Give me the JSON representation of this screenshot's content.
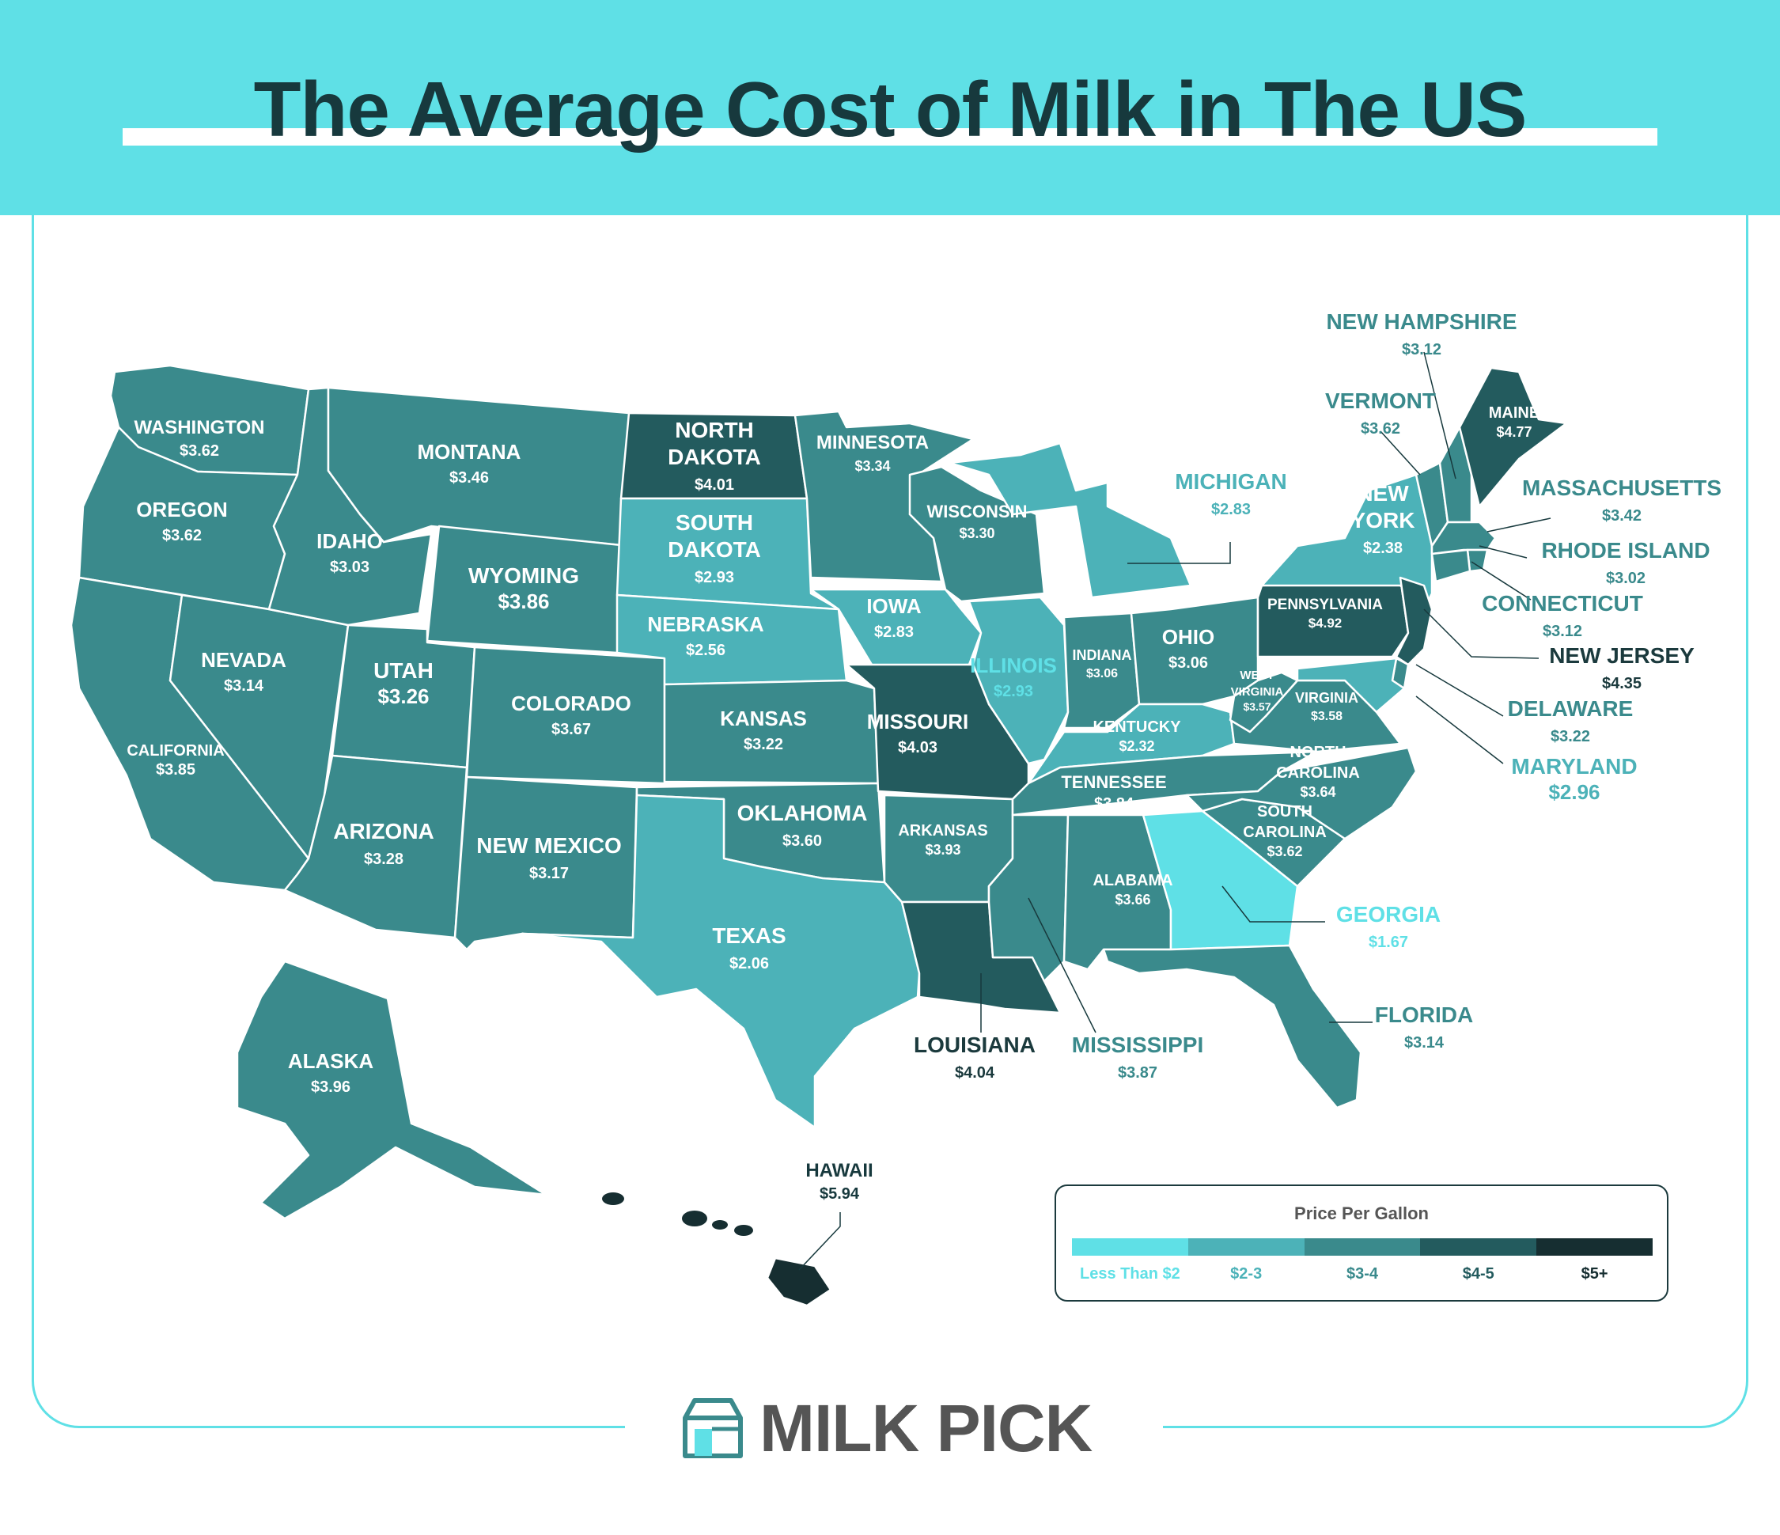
{
  "title": "The Average Cost of Milk in The US",
  "colors": {
    "header": "#5fe0e6",
    "title_text": "#17393d",
    "tier_lt2": "#5fe0e6",
    "tier_2_3": "#4cb2b8",
    "tier_3_4": "#3a8a8c",
    "tier_4_5": "#235b5e",
    "tier_5plus": "#162e31"
  },
  "legend": {
    "title": "Price Per Gallon",
    "items": [
      {
        "label": "Less Than $2",
        "color": "#5fe0e6",
        "text_color": "#5fe0e6"
      },
      {
        "label": "$2-3",
        "color": "#4cb2b8",
        "text_color": "#4cb2b8"
      },
      {
        "label": "$3-4",
        "color": "#3a8a8c",
        "text_color": "#3a8a8c"
      },
      {
        "label": "$4-5",
        "color": "#235b5e",
        "text_color": "#235b5e"
      },
      {
        "label": "$5+",
        "color": "#162e31",
        "text_color": "#162e31"
      }
    ]
  },
  "brand": {
    "name": "MILK PICK",
    "icon": "milk-carton-icon"
  },
  "states": [
    {
      "name": "WASHINGTON",
      "price": "$3.62",
      "tier": "tier_3_4"
    },
    {
      "name": "OREGON",
      "price": "$3.62",
      "tier": "tier_3_4"
    },
    {
      "name": "CALIFORNIA",
      "price": "$3.85",
      "tier": "tier_3_4"
    },
    {
      "name": "NEVADA",
      "price": "$3.14",
      "tier": "tier_3_4"
    },
    {
      "name": "IDAHO",
      "price": "$3.03",
      "tier": "tier_3_4"
    },
    {
      "name": "MONTANA",
      "price": "$3.46",
      "tier": "tier_3_4"
    },
    {
      "name": "WYOMING",
      "price": "$3.86",
      "tier": "tier_3_4"
    },
    {
      "name": "UTAH",
      "price": "$3.26",
      "tier": "tier_3_4"
    },
    {
      "name": "ARIZONA",
      "price": "$3.28",
      "tier": "tier_3_4"
    },
    {
      "name": "COLORADO",
      "price": "$3.67",
      "tier": "tier_3_4"
    },
    {
      "name": "NEW MEXICO",
      "price": "$3.17",
      "tier": "tier_3_4"
    },
    {
      "name": "NORTH DAKOTA",
      "price": "$4.01",
      "tier": "tier_4_5"
    },
    {
      "name": "SOUTH DAKOTA",
      "price": "$2.93",
      "tier": "tier_2_3"
    },
    {
      "name": "NEBRASKA",
      "price": "$2.56",
      "tier": "tier_2_3"
    },
    {
      "name": "KANSAS",
      "price": "$3.22",
      "tier": "tier_3_4"
    },
    {
      "name": "OKLAHOMA",
      "price": "$3.60",
      "tier": "tier_3_4"
    },
    {
      "name": "TEXAS",
      "price": "$2.06",
      "tier": "tier_2_3"
    },
    {
      "name": "MINNESOTA",
      "price": "$3.34",
      "tier": "tier_3_4"
    },
    {
      "name": "IOWA",
      "price": "$2.83",
      "tier": "tier_2_3"
    },
    {
      "name": "MISSOURI",
      "price": "$4.03",
      "tier": "tier_4_5"
    },
    {
      "name": "ARKANSAS",
      "price": "$3.93",
      "tier": "tier_3_4"
    },
    {
      "name": "LOUISIANA",
      "price": "$4.04",
      "tier": "tier_4_5"
    },
    {
      "name": "WISCONSIN",
      "price": "$3.30",
      "tier": "tier_3_4"
    },
    {
      "name": "ILLINOIS",
      "price": "$2.93",
      "tier": "tier_2_3"
    },
    {
      "name": "MICHIGAN",
      "price": "$2.83",
      "tier": "tier_2_3"
    },
    {
      "name": "INDIANA",
      "price": "$3.06",
      "tier": "tier_3_4"
    },
    {
      "name": "OHIO",
      "price": "$3.06",
      "tier": "tier_3_4"
    },
    {
      "name": "KENTUCKY",
      "price": "$2.32",
      "tier": "tier_2_3"
    },
    {
      "name": "TENNESSEE",
      "price": "$3.84",
      "tier": "tier_3_4"
    },
    {
      "name": "MISSISSIPPI",
      "price": "$3.87",
      "tier": "tier_3_4"
    },
    {
      "name": "ALABAMA",
      "price": "$3.66",
      "tier": "tier_3_4"
    },
    {
      "name": "GEORGIA",
      "price": "$1.67",
      "tier": "tier_lt2"
    },
    {
      "name": "FLORIDA",
      "price": "$3.14",
      "tier": "tier_3_4"
    },
    {
      "name": "SOUTH CAROLINA",
      "price": "$3.62",
      "tier": "tier_3_4"
    },
    {
      "name": "NORTH CAROLINA",
      "price": "$3.64",
      "tier": "tier_3_4"
    },
    {
      "name": "VIRGINIA",
      "price": "$3.58",
      "tier": "tier_3_4"
    },
    {
      "name": "WEST VIRGINIA",
      "price": "$3.57",
      "tier": "tier_3_4"
    },
    {
      "name": "PENNSYLVANIA",
      "price": "$4.92",
      "tier": "tier_4_5"
    },
    {
      "name": "NEW YORK",
      "price": "$2.38",
      "tier": "tier_2_3"
    },
    {
      "name": "VERMONT",
      "price": "$3.62",
      "tier": "tier_3_4"
    },
    {
      "name": "NEW HAMPSHIRE",
      "price": "$3.12",
      "tier": "tier_3_4"
    },
    {
      "name": "MAINE",
      "price": "$4.77",
      "tier": "tier_4_5"
    },
    {
      "name": "MASSACHUSETTS",
      "price": "$3.42",
      "tier": "tier_3_4"
    },
    {
      "name": "RHODE ISLAND",
      "price": "$3.02",
      "tier": "tier_3_4"
    },
    {
      "name": "CONNECTICUT",
      "price": "$3.12",
      "tier": "tier_3_4"
    },
    {
      "name": "NEW JERSEY",
      "price": "$4.35",
      "tier": "tier_4_5"
    },
    {
      "name": "DELAWARE",
      "price": "$3.22",
      "tier": "tier_3_4"
    },
    {
      "name": "MARYLAND",
      "price": "$2.96",
      "tier": "tier_2_3"
    },
    {
      "name": "ALASKA",
      "price": "$3.96",
      "tier": "tier_3_4"
    },
    {
      "name": "HAWAII",
      "price": "$5.94",
      "tier": "tier_5plus"
    }
  ]
}
